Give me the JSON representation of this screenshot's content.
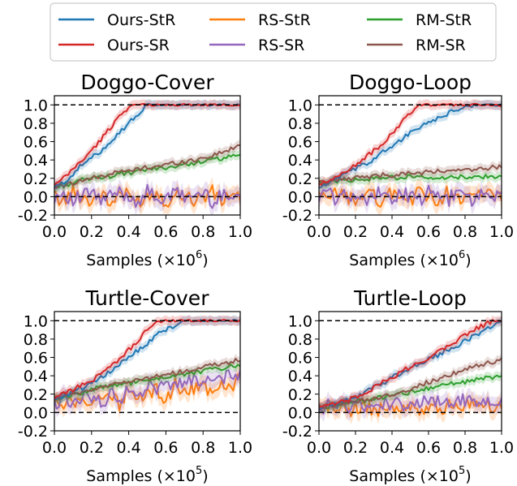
{
  "legend": {
    "placement": "top-center",
    "entries": [
      {
        "name": "Ours-StR",
        "color": "#1f77b4"
      },
      {
        "name": "RS-StR",
        "color": "#ff7f0e"
      },
      {
        "name": "RM-StR",
        "color": "#2ca02c"
      },
      {
        "name": "Ours-SR",
        "color": "#d62728"
      },
      {
        "name": "RS-SR",
        "color": "#9467bd"
      },
      {
        "name": "RM-SR",
        "color": "#8c564b"
      }
    ]
  },
  "chart_data": [
    {
      "type": "line",
      "title": "Doggo-Cover",
      "xlabel_base": "Samples (×10",
      "xlabel_exp": "6",
      "xlabel_close": ")",
      "xlim": [
        0,
        1
      ],
      "ylim": [
        -0.2,
        1.1
      ],
      "xticks": [
        "0.0",
        "0.2",
        "0.4",
        "0.6",
        "0.8",
        "1.0"
      ],
      "yticks": [
        "-0.2",
        "0.0",
        "0.2",
        "0.4",
        "0.6",
        "0.8",
        "1.0"
      ],
      "reference_lines": [
        0,
        1
      ],
      "x": [
        0,
        0.05,
        0.1,
        0.15,
        0.2,
        0.25,
        0.3,
        0.35,
        0.4,
        0.45,
        0.5,
        0.55,
        0.6,
        0.65,
        0.7,
        0.75,
        0.8,
        0.85,
        0.9,
        0.95,
        1.0
      ],
      "series": [
        {
          "name": "Ours-StR",
          "values": [
            0.1,
            0.15,
            0.25,
            0.35,
            0.42,
            0.5,
            0.6,
            0.7,
            0.8,
            0.9,
            1.0,
            1.0,
            1.0,
            1.0,
            1.0,
            1.0,
            1.0,
            1.0,
            1.0,
            1.0,
            1.0
          ]
        },
        {
          "name": "Ours-SR",
          "values": [
            0.12,
            0.2,
            0.3,
            0.4,
            0.5,
            0.62,
            0.75,
            0.88,
            0.98,
            1.0,
            1.0,
            1.0,
            1.0,
            1.0,
            1.0,
            1.0,
            1.0,
            1.0,
            1.0,
            1.0,
            1.0
          ]
        },
        {
          "name": "RS-StR",
          "values": [
            0.0,
            -0.05,
            0.05,
            0.0,
            -0.05,
            0.05,
            -0.1,
            0.05,
            0.0,
            -0.05,
            0.0,
            0.05,
            -0.05,
            0.0,
            0.05,
            -0.05,
            0.0,
            0.05,
            -0.05,
            0.05,
            0.0
          ]
        },
        {
          "name": "RS-SR",
          "values": [
            0.0,
            0.05,
            -0.05,
            0.0,
            0.05,
            -0.05,
            0.0,
            0.05,
            0.0,
            -0.05,
            0.05,
            0.0,
            -0.05,
            0.05,
            0.0,
            0.0,
            0.05,
            -0.05,
            0.0,
            0.05,
            0.0
          ]
        },
        {
          "name": "RM-StR",
          "values": [
            0.1,
            0.12,
            0.15,
            0.18,
            0.2,
            0.22,
            0.22,
            0.25,
            0.25,
            0.27,
            0.3,
            0.3,
            0.32,
            0.33,
            0.35,
            0.37,
            0.38,
            0.4,
            0.42,
            0.43,
            0.45
          ]
        },
        {
          "name": "RM-SR",
          "values": [
            0.1,
            0.13,
            0.15,
            0.18,
            0.2,
            0.22,
            0.25,
            0.27,
            0.28,
            0.3,
            0.32,
            0.33,
            0.35,
            0.37,
            0.38,
            0.4,
            0.42,
            0.45,
            0.48,
            0.52,
            0.55
          ]
        }
      ]
    },
    {
      "type": "line",
      "title": "Doggo-Loop",
      "xlabel_base": "Samples (×10",
      "xlabel_exp": "6",
      "xlabel_close": ")",
      "xlim": [
        0,
        1
      ],
      "ylim": [
        -0.2,
        1.1
      ],
      "xticks": [
        "0.0",
        "0.2",
        "0.4",
        "0.6",
        "0.8",
        "1.0"
      ],
      "yticks": [
        "-0.2",
        "0.0",
        "0.2",
        "0.4",
        "0.6",
        "0.8",
        "1.0"
      ],
      "reference_lines": [
        0,
        1
      ],
      "x": [
        0,
        0.05,
        0.1,
        0.15,
        0.2,
        0.25,
        0.3,
        0.35,
        0.4,
        0.45,
        0.5,
        0.55,
        0.6,
        0.65,
        0.7,
        0.75,
        0.8,
        0.85,
        0.9,
        0.95,
        1.0
      ],
      "series": [
        {
          "name": "Ours-StR",
          "values": [
            0.1,
            0.15,
            0.2,
            0.25,
            0.3,
            0.35,
            0.4,
            0.5,
            0.55,
            0.62,
            0.7,
            0.75,
            0.8,
            0.85,
            0.9,
            0.95,
            0.97,
            1.0,
            1.0,
            1.0,
            1.0
          ]
        },
        {
          "name": "Ours-SR",
          "values": [
            0.12,
            0.17,
            0.22,
            0.28,
            0.35,
            0.42,
            0.5,
            0.58,
            0.68,
            0.8,
            0.92,
            1.0,
            1.0,
            1.0,
            1.0,
            1.0,
            1.0,
            1.0,
            1.0,
            1.0,
            1.0
          ]
        },
        {
          "name": "RS-StR",
          "values": [
            0.0,
            -0.05,
            0.05,
            0.0,
            -0.05,
            0.05,
            0.0,
            -0.05,
            0.05,
            0.0,
            -0.05,
            0.05,
            0.0,
            -0.05,
            0.05,
            0.0,
            -0.05,
            0.05,
            0.0,
            0.05,
            0.0
          ]
        },
        {
          "name": "RS-SR",
          "values": [
            0.0,
            0.05,
            -0.05,
            0.05,
            0.0,
            -0.05,
            0.05,
            0.0,
            -0.05,
            0.05,
            0.0,
            -0.05,
            0.05,
            0.0,
            -0.05,
            0.05,
            0.0,
            -0.05,
            0.05,
            0.0,
            0.05
          ]
        },
        {
          "name": "RM-StR",
          "values": [
            0.15,
            0.16,
            0.17,
            0.18,
            0.18,
            0.19,
            0.2,
            0.2,
            0.21,
            0.2,
            0.22,
            0.2,
            0.21,
            0.22,
            0.2,
            0.21,
            0.22,
            0.2,
            0.22,
            0.21,
            0.22
          ]
        },
        {
          "name": "RM-SR",
          "values": [
            0.15,
            0.17,
            0.18,
            0.2,
            0.2,
            0.22,
            0.22,
            0.24,
            0.23,
            0.25,
            0.26,
            0.25,
            0.27,
            0.28,
            0.27,
            0.28,
            0.3,
            0.28,
            0.3,
            0.32,
            0.33
          ]
        }
      ]
    },
    {
      "type": "line",
      "title": "Turtle-Cover",
      "xlabel_base": "Samples (×10",
      "xlabel_exp": "5",
      "xlabel_close": ")",
      "xlim": [
        0,
        1
      ],
      "ylim": [
        -0.2,
        1.1
      ],
      "xticks": [
        "0.0",
        "0.2",
        "0.4",
        "0.6",
        "0.8",
        "1.0"
      ],
      "yticks": [
        "-0.2",
        "0.0",
        "0.2",
        "0.4",
        "0.6",
        "0.8",
        "1.0"
      ],
      "reference_lines": [
        0,
        1
      ],
      "x": [
        0,
        0.05,
        0.1,
        0.15,
        0.2,
        0.25,
        0.3,
        0.35,
        0.4,
        0.45,
        0.5,
        0.55,
        0.6,
        0.65,
        0.7,
        0.75,
        0.8,
        0.85,
        0.9,
        0.95,
        1.0
      ],
      "series": [
        {
          "name": "Ours-StR",
          "values": [
            0.15,
            0.18,
            0.22,
            0.27,
            0.32,
            0.38,
            0.45,
            0.52,
            0.6,
            0.68,
            0.75,
            0.85,
            0.9,
            0.95,
            1.0,
            1.0,
            1.0,
            1.0,
            1.0,
            1.0,
            1.0
          ]
        },
        {
          "name": "Ours-SR",
          "values": [
            0.15,
            0.2,
            0.25,
            0.3,
            0.35,
            0.42,
            0.5,
            0.58,
            0.68,
            0.78,
            0.9,
            0.98,
            1.0,
            1.0,
            1.0,
            1.0,
            1.0,
            1.0,
            1.0,
            1.0,
            1.0
          ]
        },
        {
          "name": "RS-StR",
          "values": [
            0.1,
            0.05,
            0.15,
            0.1,
            0.05,
            0.15,
            0.2,
            0.1,
            0.25,
            0.15,
            0.2,
            0.25,
            0.15,
            0.3,
            0.2,
            0.25,
            0.3,
            0.2,
            0.35,
            0.3,
            0.35
          ]
        },
        {
          "name": "RS-SR",
          "values": [
            0.1,
            0.15,
            0.1,
            0.2,
            0.15,
            0.1,
            0.2,
            0.15,
            0.25,
            0.2,
            0.3,
            0.25,
            0.3,
            0.35,
            0.3,
            0.35,
            0.3,
            0.4,
            0.35,
            0.45,
            0.4
          ]
        },
        {
          "name": "RM-StR",
          "values": [
            0.15,
            0.17,
            0.2,
            0.22,
            0.25,
            0.27,
            0.28,
            0.3,
            0.32,
            0.33,
            0.35,
            0.37,
            0.38,
            0.4,
            0.42,
            0.43,
            0.45,
            0.47,
            0.48,
            0.5,
            0.52
          ]
        },
        {
          "name": "RM-SR",
          "values": [
            0.15,
            0.17,
            0.2,
            0.22,
            0.25,
            0.27,
            0.3,
            0.32,
            0.34,
            0.35,
            0.37,
            0.4,
            0.42,
            0.43,
            0.45,
            0.47,
            0.5,
            0.52,
            0.53,
            0.55,
            0.58
          ]
        }
      ]
    },
    {
      "type": "line",
      "title": "Turtle-Loop",
      "xlabel_base": "Samples (×10",
      "xlabel_exp": "5",
      "xlabel_close": ")",
      "xlim": [
        0,
        1
      ],
      "ylim": [
        -0.2,
        1.1
      ],
      "xticks": [
        "0.0",
        "0.2",
        "0.4",
        "0.6",
        "0.8",
        "1.0"
      ],
      "yticks": [
        "-0.2",
        "0.0",
        "0.2",
        "0.4",
        "0.6",
        "0.8",
        "1.0"
      ],
      "reference_lines": [
        0,
        1
      ],
      "x": [
        0,
        0.05,
        0.1,
        0.15,
        0.2,
        0.25,
        0.3,
        0.35,
        0.4,
        0.45,
        0.5,
        0.55,
        0.6,
        0.65,
        0.7,
        0.75,
        0.8,
        0.85,
        0.9,
        0.95,
        1.0
      ],
      "series": [
        {
          "name": "Ours-StR",
          "values": [
            0.05,
            0.08,
            0.1,
            0.13,
            0.17,
            0.22,
            0.27,
            0.32,
            0.38,
            0.43,
            0.48,
            0.52,
            0.58,
            0.62,
            0.68,
            0.72,
            0.78,
            0.83,
            0.9,
            0.95,
            1.0
          ]
        },
        {
          "name": "Ours-SR",
          "values": [
            0.05,
            0.07,
            0.1,
            0.13,
            0.17,
            0.22,
            0.27,
            0.33,
            0.38,
            0.44,
            0.5,
            0.55,
            0.6,
            0.66,
            0.72,
            0.78,
            0.85,
            0.9,
            0.95,
            1.0,
            1.0
          ]
        },
        {
          "name": "RS-StR",
          "values": [
            0.05,
            0.03,
            0.05,
            0.02,
            0.05,
            0.03,
            0.05,
            0.02,
            0.05,
            0.04,
            0.05,
            0.03,
            0.06,
            0.05,
            0.07,
            0.06,
            0.08,
            0.07,
            0.1,
            0.08,
            0.1
          ]
        },
        {
          "name": "RS-SR",
          "values": [
            0.05,
            0.07,
            0.05,
            0.08,
            0.06,
            0.09,
            0.07,
            0.1,
            0.08,
            0.1,
            0.09,
            0.1,
            0.12,
            0.1,
            0.13,
            0.12,
            0.14,
            0.12,
            0.15,
            0.14,
            0.15
          ]
        },
        {
          "name": "RM-StR",
          "values": [
            0.05,
            0.07,
            0.08,
            0.1,
            0.12,
            0.13,
            0.15,
            0.17,
            0.18,
            0.2,
            0.22,
            0.24,
            0.26,
            0.28,
            0.3,
            0.32,
            0.33,
            0.35,
            0.37,
            0.38,
            0.38
          ]
        },
        {
          "name": "RM-SR",
          "values": [
            0.05,
            0.07,
            0.08,
            0.1,
            0.12,
            0.13,
            0.15,
            0.18,
            0.2,
            0.23,
            0.26,
            0.3,
            0.33,
            0.36,
            0.4,
            0.43,
            0.47,
            0.5,
            0.53,
            0.55,
            0.58
          ]
        }
      ]
    }
  ]
}
